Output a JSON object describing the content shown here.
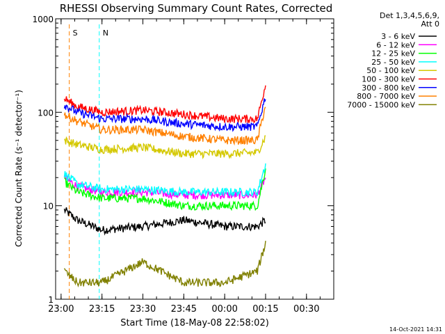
{
  "chart_data": {
    "type": "line",
    "title": "RHESSI Observing Summary Count Rates, Corrected",
    "xlabel": "Start Time (18-May-08 22:58:02)",
    "ylabel": "Corrected Count Rate (s⁻¹ detector⁻¹)",
    "y_scale": "log",
    "ylim": [
      1,
      1000
    ],
    "xlim": [
      "22:58",
      "00:40"
    ],
    "x_ticks": [
      "23:00",
      "23:15",
      "23:30",
      "23:45",
      "00:00",
      "00:15",
      "00:30"
    ],
    "y_ticks": [
      "1",
      "10",
      "100",
      "1000"
    ],
    "detector_info": [
      "Det 1,3,4,5,6,9,",
      "Att 0"
    ],
    "timestamp": "14-Oct-2021 14:31",
    "markers": [
      {
        "label": "S",
        "time": "23:03",
        "color": "#ff8000"
      },
      {
        "label": "N",
        "time": "23:14",
        "color": "#00ffff"
      }
    ],
    "legend_placement": "right",
    "series": [
      {
        "name": "3 - 6 keV",
        "color": "#000000",
        "values": [
          [
            23.02,
            9
          ],
          [
            23.1,
            7
          ],
          [
            23.25,
            5.5
          ],
          [
            23.5,
            6
          ],
          [
            23.75,
            7
          ],
          [
            24.0,
            6
          ],
          [
            24.2,
            6
          ],
          [
            24.25,
            7
          ]
        ]
      },
      {
        "name": "6 - 12 keV",
        "color": "#ff00ff",
        "values": [
          [
            23.02,
            20
          ],
          [
            23.1,
            16
          ],
          [
            23.25,
            14
          ],
          [
            23.5,
            14
          ],
          [
            23.75,
            13
          ],
          [
            24.0,
            13
          ],
          [
            24.2,
            13
          ],
          [
            24.25,
            20
          ]
        ]
      },
      {
        "name": "12 - 25 keV",
        "color": "#00ff00",
        "values": [
          [
            23.02,
            18
          ],
          [
            23.1,
            14
          ],
          [
            23.25,
            12
          ],
          [
            23.5,
            12
          ],
          [
            23.75,
            10
          ],
          [
            24.0,
            10
          ],
          [
            24.2,
            10
          ],
          [
            24.25,
            25
          ]
        ]
      },
      {
        "name": "25 - 50 keV",
        "color": "#00ffff",
        "values": [
          [
            23.02,
            22
          ],
          [
            23.1,
            17
          ],
          [
            23.25,
            15
          ],
          [
            23.5,
            15
          ],
          [
            23.75,
            14
          ],
          [
            24.0,
            14
          ],
          [
            24.2,
            14
          ],
          [
            24.25,
            28
          ]
        ]
      },
      {
        "name": "50 - 100 keV",
        "color": "#d4c800",
        "values": [
          [
            23.02,
            50
          ],
          [
            23.1,
            45
          ],
          [
            23.25,
            40
          ],
          [
            23.5,
            42
          ],
          [
            23.75,
            36
          ],
          [
            24.0,
            36
          ],
          [
            24.2,
            37
          ],
          [
            24.25,
            55
          ]
        ]
      },
      {
        "name": "100 - 300 keV",
        "color": "#ff0000",
        "values": [
          [
            23.02,
            140
          ],
          [
            23.1,
            115
          ],
          [
            23.25,
            100
          ],
          [
            23.5,
            105
          ],
          [
            23.75,
            95
          ],
          [
            24.0,
            85
          ],
          [
            24.2,
            85
          ],
          [
            24.25,
            200
          ]
        ]
      },
      {
        "name": "300 - 800 keV",
        "color": "#0000ff",
        "values": [
          [
            23.02,
            120
          ],
          [
            23.1,
            100
          ],
          [
            23.25,
            85
          ],
          [
            23.5,
            85
          ],
          [
            23.75,
            75
          ],
          [
            24.0,
            70
          ],
          [
            24.2,
            70
          ],
          [
            24.25,
            150
          ]
        ]
      },
      {
        "name": "800 - 7000 keV",
        "color": "#ff8000",
        "values": [
          [
            23.02,
            95
          ],
          [
            23.1,
            80
          ],
          [
            23.25,
            65
          ],
          [
            23.5,
            65
          ],
          [
            23.75,
            55
          ],
          [
            24.0,
            50
          ],
          [
            24.2,
            50
          ],
          [
            24.25,
            120
          ]
        ]
      },
      {
        "name": "7000 - 15000 keV",
        "color": "#808000",
        "values": [
          [
            23.02,
            2
          ],
          [
            23.1,
            1.5
          ],
          [
            23.25,
            1.5
          ],
          [
            23.5,
            2.5
          ],
          [
            23.75,
            1.5
          ],
          [
            24.0,
            1.5
          ],
          [
            24.2,
            2
          ],
          [
            24.25,
            4
          ]
        ]
      }
    ]
  }
}
